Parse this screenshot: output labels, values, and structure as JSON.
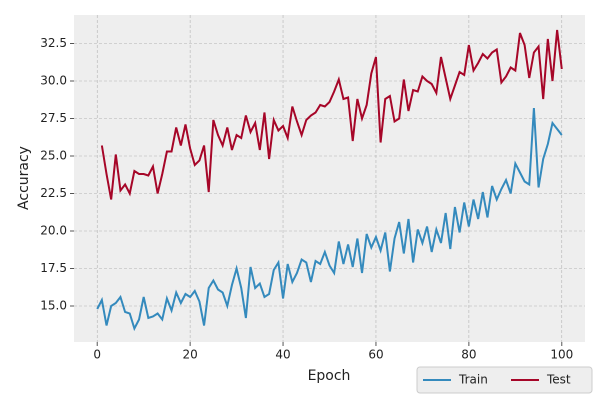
{
  "chart_data": {
    "type": "line",
    "xlabel": "Epoch",
    "ylabel": "Accuracy",
    "xlim": [
      -5,
      105
    ],
    "ylim": [
      12.6,
      34.4
    ],
    "xticks": [
      0,
      20,
      40,
      60,
      80,
      100
    ],
    "yticks": [
      {
        "value": 15,
        "label": "15.0"
      },
      17.5,
      {
        "value": 20,
        "label": "20.0"
      },
      22.5,
      {
        "value": 25,
        "label": "25.0"
      },
      27.5,
      {
        "value": 30,
        "label": "30.0"
      },
      32.5
    ],
    "grid": true,
    "legend": "lower right",
    "series": [
      {
        "name": "Train",
        "color": "#348ABD",
        "x": [
          0,
          1,
          2,
          3,
          4,
          5,
          6,
          7,
          8,
          9,
          10,
          11,
          12,
          13,
          14,
          15,
          16,
          17,
          18,
          19,
          20,
          21,
          22,
          23,
          24,
          25,
          26,
          27,
          28,
          29,
          30,
          31,
          32,
          33,
          34,
          35,
          36,
          37,
          38,
          39,
          40,
          41,
          42,
          43,
          44,
          45,
          46,
          47,
          48,
          49,
          50,
          51,
          52,
          53,
          54,
          55,
          56,
          57,
          58,
          59,
          60,
          61,
          62,
          63,
          64,
          65,
          66,
          67,
          68,
          69,
          70,
          71,
          72,
          73,
          74,
          75,
          76,
          77,
          78,
          79,
          80,
          81,
          82,
          83,
          84,
          85,
          86,
          87,
          88,
          89,
          90,
          91,
          92,
          93,
          94,
          95,
          96,
          97,
          98,
          99,
          100
        ],
        "values": [
          14.8,
          15.4,
          13.7,
          15.0,
          15.2,
          15.6,
          14.6,
          14.5,
          13.5,
          14.1,
          15.6,
          14.2,
          14.3,
          14.5,
          14.1,
          15.5,
          14.7,
          15.9,
          15.2,
          15.8,
          15.6,
          16.0,
          15.3,
          13.7,
          16.2,
          16.7,
          16.1,
          15.9,
          15.0,
          16.4,
          17.5,
          16.2,
          14.2,
          17.6,
          16.2,
          16.5,
          15.6,
          15.8,
          17.4,
          17.9,
          15.5,
          17.8,
          16.6,
          17.2,
          18.1,
          17.9,
          16.6,
          18.0,
          17.8,
          18.6,
          17.7,
          17.2,
          19.3,
          17.8,
          19.1,
          17.6,
          19.5,
          17.2,
          19.8,
          18.9,
          19.6,
          18.7,
          19.9,
          17.3,
          19.5,
          20.6,
          18.5,
          20.8,
          17.9,
          20.1,
          19.2,
          20.3,
          18.6,
          20.1,
          19.2,
          21.2,
          18.8,
          21.6,
          19.9,
          21.9,
          20.3,
          22.1,
          20.8,
          22.6,
          20.9,
          23.0,
          22.1,
          22.8,
          23.4,
          22.5,
          24.5,
          23.9,
          23.3,
          23.1,
          28.2,
          22.9,
          24.8,
          25.8,
          27.2,
          26.8,
          26.4
        ]
      },
      {
        "name": "Test",
        "color": "#A60628",
        "x": [
          1,
          2,
          3,
          4,
          5,
          6,
          7,
          8,
          9,
          10,
          11,
          12,
          13,
          14,
          15,
          16,
          17,
          18,
          19,
          20,
          21,
          22,
          23,
          24,
          25,
          26,
          27,
          28,
          29,
          30,
          31,
          32,
          33,
          34,
          35,
          36,
          37,
          38,
          39,
          40,
          41,
          42,
          43,
          44,
          45,
          46,
          47,
          48,
          49,
          50,
          51,
          52,
          53,
          54,
          55,
          56,
          57,
          58,
          59,
          60,
          61,
          62,
          63,
          64,
          65,
          66,
          67,
          68,
          69,
          70,
          71,
          72,
          73,
          74,
          75,
          76,
          77,
          78,
          79,
          80,
          81,
          82,
          83,
          84,
          85,
          86,
          87,
          88,
          89,
          90,
          91,
          92,
          93,
          94,
          95,
          96,
          97,
          98,
          99,
          100
        ],
        "values": [
          25.7,
          23.8,
          22.1,
          25.1,
          22.7,
          23.1,
          22.5,
          24.0,
          23.8,
          23.8,
          23.7,
          24.3,
          22.5,
          23.8,
          25.3,
          25.3,
          26.9,
          25.7,
          27.1,
          25.5,
          24.4,
          24.7,
          25.7,
          22.6,
          27.4,
          26.4,
          25.7,
          26.9,
          25.4,
          26.4,
          26.2,
          27.7,
          26.6,
          27.2,
          25.4,
          27.9,
          24.8,
          27.4,
          26.7,
          27.0,
          26.2,
          28.3,
          27.3,
          26.4,
          27.4,
          27.7,
          27.9,
          28.4,
          28.3,
          28.6,
          29.3,
          30.1,
          28.8,
          28.9,
          26.0,
          28.8,
          27.5,
          28.4,
          30.5,
          31.6,
          25.9,
          28.8,
          29.0,
          27.3,
          27.5,
          30.1,
          28.0,
          29.4,
          29.3,
          30.3,
          30.0,
          29.8,
          29.2,
          31.6,
          30.2,
          28.8,
          29.7,
          30.6,
          30.4,
          32.4,
          30.7,
          31.2,
          31.8,
          31.5,
          31.9,
          32.1,
          29.9,
          30.3,
          30.9,
          30.7,
          33.2,
          32.4,
          30.2,
          31.9,
          32.3,
          28.8,
          32.8,
          30.0,
          33.4,
          30.8
        ]
      }
    ]
  }
}
